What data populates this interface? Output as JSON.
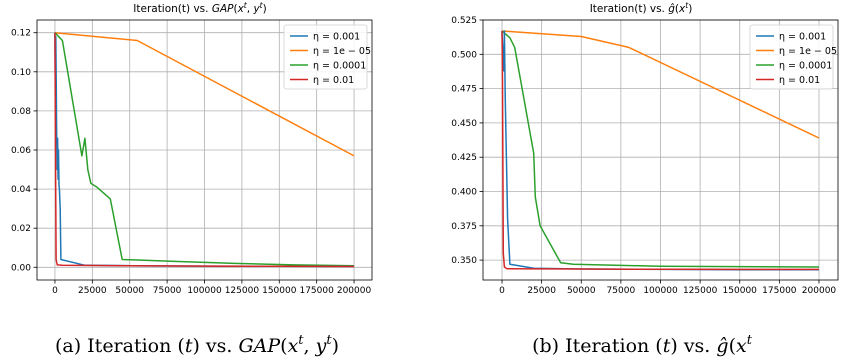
{
  "chart_data": [
    {
      "type": "line",
      "title": "Iteration(t) vs. GAP(x^t, y^t)",
      "xlabel": "",
      "ylabel": "",
      "xlim": [
        -12000,
        212000
      ],
      "ylim": [
        -0.0065,
        0.1265
      ],
      "xticks": [
        0,
        25000,
        50000,
        75000,
        100000,
        125000,
        150000,
        175000,
        200000
      ],
      "xtick_labels": [
        "0",
        "25000",
        "50000",
        "75000",
        "100000",
        "125000",
        "150000",
        "175000",
        "200000"
      ],
      "yticks": [
        0.0,
        0.02,
        0.04,
        0.06,
        0.08,
        0.1,
        0.12
      ],
      "ytick_labels": [
        "0.00",
        "0.02",
        "0.04",
        "0.06",
        "0.08",
        "0.10",
        "0.12"
      ],
      "grid": true,
      "legend_position": "top-right",
      "caption": "(a) Iteration (t) vs. GAP(x^t, y^t)",
      "series": [
        {
          "name": "η = 0.001",
          "color": "#1f77b4",
          "x": [
            0,
            300,
            600,
            900,
            1200,
            1500,
            1800,
            2100,
            2400,
            2700,
            3000,
            3500,
            4000,
            20000,
            50000,
            100000,
            150000,
            200000
          ],
          "y": [
            0.12,
            0.088,
            0.118,
            0.09,
            0.065,
            0.05,
            0.066,
            0.045,
            0.06,
            0.042,
            0.04,
            0.03,
            0.004,
            0.001,
            0.0008,
            0.0006,
            0.0005,
            0.0004
          ]
        },
        {
          "name": "η = 1e − 05",
          "color": "#ff7f0e",
          "x": [
            0,
            55000,
            200000
          ],
          "y": [
            0.12,
            0.116,
            0.057
          ]
        },
        {
          "name": "η = 0.0001",
          "color": "#2ca02c",
          "x": [
            0,
            5000,
            18000,
            20000,
            22000,
            24000,
            28000,
            37000,
            45000,
            80000,
            120000,
            160000,
            200000
          ],
          "y": [
            0.12,
            0.116,
            0.057,
            0.066,
            0.05,
            0.043,
            0.041,
            0.035,
            0.004,
            0.003,
            0.002,
            0.0012,
            0.0008
          ]
        },
        {
          "name": "η = 0.01",
          "color": "#d62728",
          "x": [
            0,
            400,
            800,
            1500,
            5000,
            50000,
            100000,
            150000,
            200000
          ],
          "y": [
            0.12,
            0.06,
            0.004,
            0.0012,
            0.001,
            0.0008,
            0.0006,
            0.0005,
            0.0004
          ]
        }
      ]
    },
    {
      "type": "line",
      "title": "Iteration(t) vs. ĝ(x^t)",
      "xlabel": "",
      "ylabel": "",
      "xlim": [
        -12000,
        212000
      ],
      "ylim": [
        0.3355,
        0.525
      ],
      "xticks": [
        0,
        25000,
        50000,
        75000,
        100000,
        125000,
        150000,
        175000,
        200000
      ],
      "xtick_labels": [
        "0",
        "25000",
        "50000",
        "75000",
        "100000",
        "125000",
        "150000",
        "175000",
        "200000"
      ],
      "yticks": [
        0.35,
        0.375,
        0.4,
        0.425,
        0.45,
        0.475,
        0.5,
        0.525
      ],
      "ytick_labels": [
        "0.350",
        "0.375",
        "0.400",
        "0.425",
        "0.450",
        "0.475",
        "0.500",
        "0.525"
      ],
      "grid": true,
      "legend_position": "top-right",
      "caption": "(b) Iteration (t) vs. ĝ(x^t",
      "series": [
        {
          "name": "η = 0.001",
          "color": "#1f77b4",
          "x": [
            0,
            500,
            1000,
            1500,
            2000,
            2500,
            3500,
            5000,
            20000,
            50000,
            100000,
            150000,
            200000
          ],
          "y": [
            0.517,
            0.5,
            0.488,
            0.517,
            0.47,
            0.44,
            0.38,
            0.347,
            0.344,
            0.3435,
            0.3432,
            0.343,
            0.343
          ]
        },
        {
          "name": "η = 1e − 05",
          "color": "#ff7f0e",
          "x": [
            0,
            50000,
            80000,
            200000
          ],
          "y": [
            0.517,
            0.513,
            0.505,
            0.439
          ]
        },
        {
          "name": "η = 0.0001",
          "color": "#2ca02c",
          "x": [
            0,
            5000,
            8000,
            20000,
            21000,
            24000,
            37000,
            45000,
            100000,
            200000
          ],
          "y": [
            0.517,
            0.512,
            0.505,
            0.428,
            0.396,
            0.375,
            0.348,
            0.347,
            0.3455,
            0.345
          ]
        },
        {
          "name": "η = 0.01",
          "color": "#d62728",
          "x": [
            0,
            300,
            800,
            1500,
            3000,
            50000,
            100000,
            200000
          ],
          "y": [
            0.517,
            0.48,
            0.355,
            0.345,
            0.3437,
            0.3435,
            0.3433,
            0.3432
          ]
        }
      ]
    }
  ]
}
